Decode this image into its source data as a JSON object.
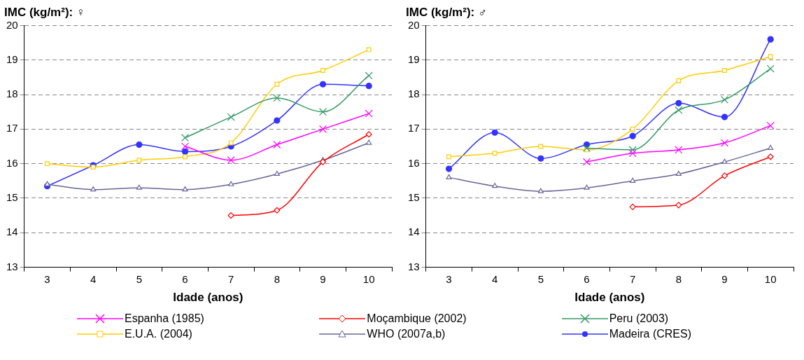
{
  "chart_data": [
    {
      "type": "line",
      "title": "IMC (kg/m²): ♀",
      "xlabel": "Idade (anos)",
      "categories": [
        "3",
        "4",
        "5",
        "6",
        "7",
        "8",
        "9",
        "10"
      ],
      "ylim": [
        13,
        20
      ],
      "yticks": [
        13,
        14,
        15,
        16,
        17,
        18,
        19,
        20
      ],
      "grid": "y",
      "legend": "bottom",
      "line_style": "solid",
      "series": [
        {
          "name": "Espanha (1985)",
          "color": "#ff00ff",
          "marker": "cross",
          "values": [
            null,
            null,
            null,
            16.5,
            16.1,
            16.55,
            17.0,
            17.45
          ]
        },
        {
          "name": "Moçambique (2002)",
          "color": "#ff0000",
          "marker": "diamond",
          "values": [
            null,
            null,
            null,
            null,
            14.5,
            14.65,
            16.05,
            16.85
          ]
        },
        {
          "name": "Peru (2003)",
          "color": "#339966",
          "marker": "cross",
          "values": [
            null,
            null,
            null,
            16.75,
            17.35,
            17.9,
            17.5,
            18.55
          ]
        },
        {
          "name": "E.U.A. (2004)",
          "color": "#ffcc00",
          "marker": "square",
          "values": [
            16.0,
            15.9,
            16.1,
            16.2,
            16.6,
            18.3,
            18.7,
            19.3
          ]
        },
        {
          "name": "WHO (2007a,b)",
          "color": "#666699",
          "marker": "triangle",
          "values": [
            15.4,
            15.25,
            15.3,
            15.25,
            15.4,
            15.7,
            16.1,
            16.6
          ]
        },
        {
          "name": "Madeira (CRES)",
          "color": "#3333ff",
          "marker": "circle",
          "values": [
            15.35,
            15.95,
            16.55,
            16.35,
            16.5,
            17.25,
            18.3,
            18.25
          ]
        }
      ]
    },
    {
      "type": "line",
      "title": "IMC (kg/m²): ♂",
      "xlabel": "Idade (anos)",
      "categories": [
        "3",
        "4",
        "5",
        "6",
        "7",
        "8",
        "9",
        "10"
      ],
      "ylim": [
        13,
        20
      ],
      "yticks": [
        13,
        14,
        15,
        16,
        17,
        18,
        19,
        20
      ],
      "grid": "y",
      "legend": "bottom",
      "line_style": "solid",
      "series": [
        {
          "name": "Espanha (1985)",
          "color": "#ff00ff",
          "marker": "cross",
          "values": [
            null,
            null,
            null,
            16.05,
            16.3,
            16.4,
            16.6,
            17.1
          ]
        },
        {
          "name": "Moçambique (2002)",
          "color": "#ff0000",
          "marker": "diamond",
          "values": [
            null,
            null,
            null,
            null,
            14.75,
            14.8,
            15.65,
            16.2
          ]
        },
        {
          "name": "Peru (2003)",
          "color": "#339966",
          "marker": "cross",
          "values": [
            null,
            null,
            null,
            16.45,
            16.4,
            17.55,
            17.85,
            18.75
          ]
        },
        {
          "name": "E.U.A. (2004)",
          "color": "#ffcc00",
          "marker": "square",
          "values": [
            16.2,
            16.3,
            16.5,
            16.4,
            17.0,
            18.4,
            18.7,
            19.1
          ]
        },
        {
          "name": "WHO (2007a,b)",
          "color": "#666699",
          "marker": "triangle",
          "values": [
            15.6,
            15.35,
            15.2,
            15.3,
            15.5,
            15.7,
            16.05,
            16.45
          ]
        },
        {
          "name": "Madeira (CRES)",
          "color": "#3333ff",
          "marker": "circle",
          "values": [
            15.85,
            16.9,
            16.15,
            16.55,
            16.8,
            17.75,
            17.35,
            19.6
          ]
        }
      ]
    }
  ]
}
